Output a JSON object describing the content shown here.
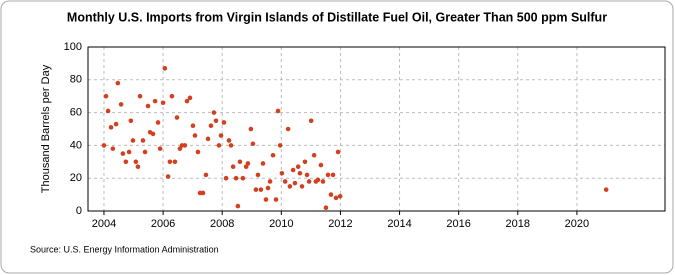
{
  "chart_data": {
    "type": "scatter",
    "title": "Monthly U.S. Imports from Virgin Islands of Distillate Fuel Oil, Greater Than 500 ppm Sulfur",
    "ylabel": "Thousand Barrels per Day",
    "source": "Source: U.S. Energy Information Administration",
    "color": "#d2401f",
    "grid": true,
    "xlim": [
      2003.46,
      2022.98
    ],
    "ylim": [
      0,
      100
    ],
    "xticks": [
      2004,
      2006,
      2008,
      2010,
      2012,
      2014,
      2016,
      2018,
      2020
    ],
    "yticks": [
      0,
      20,
      40,
      60,
      80,
      100
    ],
    "x": [
      2004.0,
      2004.07,
      2004.14,
      2004.24,
      2004.3,
      2004.41,
      2004.47,
      2004.58,
      2004.64,
      2004.74,
      2004.85,
      2004.91,
      2004.98,
      2005.08,
      2005.15,
      2005.22,
      2005.32,
      2005.39,
      2005.49,
      2005.56,
      2005.66,
      2005.73,
      2005.83,
      2005.9,
      2006.0,
      2006.06,
      2006.17,
      2006.23,
      2006.3,
      2006.4,
      2006.47,
      2006.57,
      2006.64,
      2006.74,
      2006.81,
      2006.91,
      2007.01,
      2007.08,
      2007.18,
      2007.25,
      2007.35,
      2007.45,
      2007.52,
      2007.62,
      2007.72,
      2007.79,
      2007.89,
      2007.96,
      2008.06,
      2008.13,
      2008.23,
      2008.3,
      2008.37,
      2008.47,
      2008.53,
      2008.6,
      2008.7,
      2008.81,
      2008.87,
      2008.97,
      2009.04,
      2009.14,
      2009.21,
      2009.31,
      2009.38,
      2009.48,
      2009.55,
      2009.62,
      2009.72,
      2009.82,
      2009.89,
      2009.96,
      2010.02,
      2010.13,
      2010.23,
      2010.29,
      2010.4,
      2010.46,
      2010.57,
      2010.63,
      2010.7,
      2010.8,
      2010.87,
      2010.94,
      2011.01,
      2011.11,
      2011.17,
      2011.24,
      2011.34,
      2011.41,
      2011.51,
      2011.58,
      2011.68,
      2011.75,
      2011.85,
      2011.92,
      2011.99,
      2020.99
    ],
    "values": [
      40,
      70,
      61,
      51,
      38,
      53,
      78,
      65,
      35,
      30,
      36,
      55,
      43,
      30,
      27,
      70,
      43,
      36,
      64,
      48,
      47,
      67,
      54,
      38,
      66,
      87,
      21,
      30,
      70,
      30,
      57,
      38,
      40,
      40,
      67,
      69,
      52,
      46,
      36,
      11,
      11,
      22,
      44,
      52,
      60,
      55,
      40,
      46,
      54,
      20,
      43,
      40,
      27,
      20,
      3,
      30,
      20,
      27,
      29,
      50,
      41,
      13,
      22,
      13,
      29,
      7,
      14,
      18,
      34,
      7,
      61,
      40,
      23,
      18,
      50,
      15,
      25,
      17,
      27,
      23,
      15,
      30,
      22,
      18,
      55,
      34,
      18,
      19,
      28,
      18,
      2,
      22,
      10,
      22,
      8,
      36,
      9,
      13
    ]
  }
}
